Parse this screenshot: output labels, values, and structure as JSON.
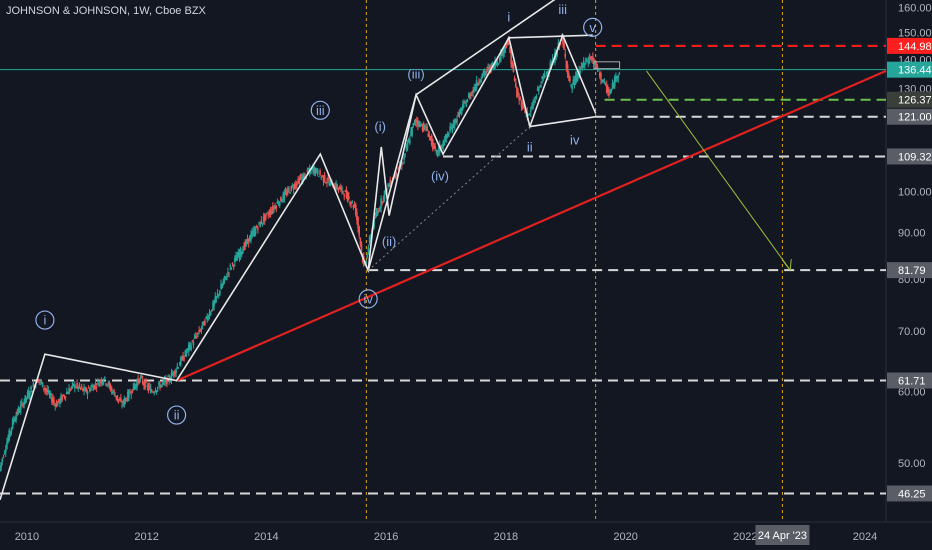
{
  "header": {
    "title": "JOHNSON & JOHNSON, 1W, Cboe BZX"
  },
  "colors": {
    "background": "#131722",
    "axis_text": "#b2b5be",
    "wave_line": "#e8e8e8",
    "trendline": "#e0211f",
    "projection": "#9bbf3a",
    "marker_vline": "#d6a21a",
    "current_price": "#26a69a",
    "up_candle": "#26a69a",
    "down_candle": "#ef5350",
    "level_red": "#ff1f1f",
    "level_green": "#6cc04a",
    "level_white": "#d8d8d8",
    "wave_label": "#8fb0e8"
  },
  "chart_data": {
    "type": "candlestick",
    "y_axis": {
      "ticks": [
        "160.00",
        "150.00",
        "140.00",
        "130.00",
        "110.00",
        "100.00",
        "90.00",
        "80.00",
        "70.00",
        "60.00",
        "50.00"
      ],
      "scale": "log",
      "ylim": [
        43,
        163
      ]
    },
    "x_axis": {
      "ticks": [
        "2010",
        "2012",
        "2014",
        "2016",
        "2018",
        "2020",
        "2022",
        "2024"
      ],
      "xlim": [
        2009.55,
        2024.35
      ]
    },
    "price_path": [
      [
        2009.55,
        49
      ],
      [
        2009.8,
        56
      ],
      [
        2010.2,
        62
      ],
      [
        2010.5,
        58
      ],
      [
        2010.8,
        61
      ],
      [
        2011.0,
        60
      ],
      [
        2011.3,
        62
      ],
      [
        2011.6,
        58
      ],
      [
        2011.9,
        62
      ],
      [
        2012.1,
        60
      ],
      [
        2012.4,
        62
      ],
      [
        2012.6,
        65
      ],
      [
        2012.9,
        70
      ],
      [
        2013.1,
        74
      ],
      [
        2013.4,
        82
      ],
      [
        2013.6,
        86
      ],
      [
        2013.9,
        92
      ],
      [
        2014.2,
        97
      ],
      [
        2014.5,
        102
      ],
      [
        2014.8,
        106
      ],
      [
        2015.0,
        103
      ],
      [
        2015.3,
        100
      ],
      [
        2015.5,
        96
      ],
      [
        2015.65,
        82
      ],
      [
        2015.8,
        92
      ],
      [
        2016.0,
        100
      ],
      [
        2016.3,
        108
      ],
      [
        2016.5,
        120
      ],
      [
        2016.7,
        117
      ],
      [
        2016.85,
        110
      ],
      [
        2017.0,
        114
      ],
      [
        2017.3,
        124
      ],
      [
        2017.6,
        134
      ],
      [
        2017.9,
        140
      ],
      [
        2018.05,
        147
      ],
      [
        2018.2,
        128
      ],
      [
        2018.4,
        121
      ],
      [
        2018.6,
        132
      ],
      [
        2018.8,
        139
      ],
      [
        2018.95,
        148
      ],
      [
        2019.1,
        130
      ],
      [
        2019.3,
        138
      ],
      [
        2019.45,
        141
      ],
      [
        2019.6,
        134
      ],
      [
        2019.75,
        128
      ],
      [
        2019.9,
        136
      ]
    ],
    "waves": [
      {
        "points": [
          [
            2009.55,
            45.5
          ],
          [
            2010.3,
            66
          ],
          [
            2012.5,
            61.7
          ],
          [
            2014.9,
            110
          ],
          [
            2015.7,
            81.7
          ],
          [
            2016.5,
            128
          ],
          [
            2016.95,
            110
          ],
          [
            2018.05,
            148
          ],
          [
            2018.4,
            118
          ],
          [
            2018.95,
            149
          ],
          [
            2019.5,
            122
          ]
        ]
      },
      {
        "points": [
          [
            2015.7,
            81.7
          ],
          [
            2015.92,
            112
          ],
          [
            2016.05,
            94
          ],
          [
            2016.5,
            128
          ]
        ]
      }
    ],
    "channels": [
      {
        "points": [
          [
            2016.5,
            128
          ],
          [
            2019.15,
            169
          ]
        ]
      },
      {
        "points": [
          [
            2018.05,
            148
          ],
          [
            2019.45,
            149
          ]
        ]
      },
      {
        "points": [
          [
            2018.4,
            118
          ],
          [
            2019.5,
            121
          ]
        ]
      }
    ],
    "trendline": {
      "points": [
        [
          2012.5,
          61.7
        ],
        [
          2024.35,
          136
        ]
      ]
    },
    "projection": {
      "points": [
        [
          2020.35,
          136
        ],
        [
          2022.75,
          81.79
        ]
      ]
    },
    "vlines": [
      2015.67,
      2019.5,
      2022.62
    ],
    "hlines": [
      {
        "value": 144.98,
        "label": "144.98",
        "kind": "red",
        "from": 2019.5
      },
      {
        "value": 136.44,
        "label": "136.44",
        "kind": "current",
        "from": 2009.55
      },
      {
        "value": 126.37,
        "label": "126.37",
        "kind": "green",
        "from": 2019.65
      },
      {
        "value": 121.0,
        "label": "121.00",
        "kind": "white",
        "from": 2019.5
      },
      {
        "value": 109.32,
        "label": "109.32",
        "kind": "white",
        "from": 2016.95
      },
      {
        "value": 81.79,
        "label": "81.79",
        "kind": "white",
        "from": 2015.7
      },
      {
        "value": 61.71,
        "label": "61.71",
        "kind": "white",
        "from": 2009.55
      },
      {
        "value": 46.25,
        "label": "46.25",
        "kind": "white",
        "from": 2009.55
      }
    ],
    "wave_labels": [
      {
        "text": "i",
        "x": 2010.3,
        "y": 72,
        "circle": true
      },
      {
        "text": "ii",
        "x": 2012.5,
        "y": 56.5,
        "circle": true
      },
      {
        "text": "iii",
        "x": 2014.9,
        "y": 123,
        "circle": true
      },
      {
        "text": "iv",
        "x": 2015.7,
        "y": 76,
        "circle": true
      },
      {
        "text": "v",
        "x": 2019.45,
        "y": 152,
        "circle": true
      },
      {
        "text": "(i)",
        "x": 2015.9,
        "y": 118,
        "circle": false
      },
      {
        "text": "(ii)",
        "x": 2016.05,
        "y": 88,
        "circle": false
      },
      {
        "text": "(iii)",
        "x": 2016.5,
        "y": 135,
        "circle": false
      },
      {
        "text": "(iv)",
        "x": 2016.9,
        "y": 104,
        "circle": false
      },
      {
        "text": "i",
        "x": 2018.05,
        "y": 156,
        "circle": false
      },
      {
        "text": "ii",
        "x": 2018.4,
        "y": 112,
        "circle": false
      },
      {
        "text": "iii",
        "x": 2018.95,
        "y": 159,
        "circle": false
      },
      {
        "text": "iv",
        "x": 2019.15,
        "y": 114,
        "circle": false
      }
    ],
    "date_marker": {
      "x": 2022.62,
      "label": "24 Apr '23"
    }
  }
}
